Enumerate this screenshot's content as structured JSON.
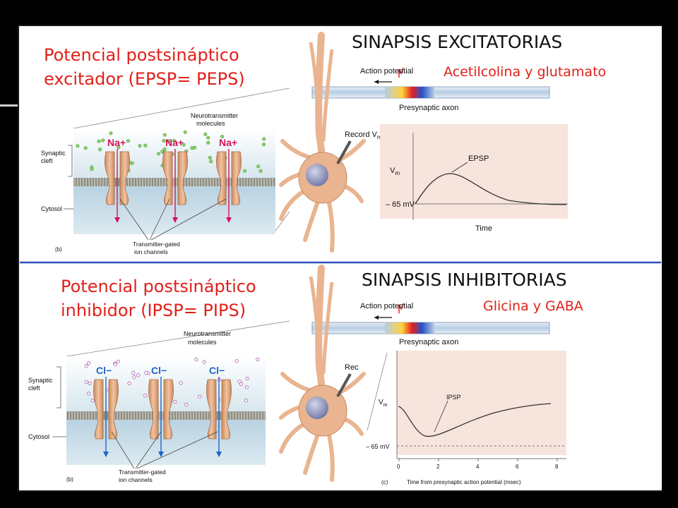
{
  "top": {
    "heading": "SINAPSIS EXCITATORIAS",
    "title_line1": "Potencial postsináptico",
    "title_line2": "excitador (EPSP= PEPS)",
    "transmitters": "Acetilcolina y glutamato",
    "action_potential": "Action potential",
    "presynaptic_axon": "Presynaptic axon",
    "record_vm": "Record V",
    "record_vm_sub": "m",
    "neurotransmitter_line1": "Neurotransmitter",
    "neurotransmitter_line2": "molecules",
    "synaptic_cleft_line1": "Synaptic",
    "synaptic_cleft_line2": "cleft",
    "cytosol": "Cytosol",
    "channels_line1": "Transmitter-gated",
    "channels_line2": "ion channels",
    "panel_letter": "(b)",
    "ion_label": "Na+",
    "graph": {
      "vm_label": "V",
      "vm_sub": "m",
      "baseline_label": "– 65 mV",
      "x_label": "Time",
      "peak_label": "EPSP"
    }
  },
  "bottom": {
    "heading": "SINAPSIS INHIBITORIAS",
    "title_line1": "Potencial postsináptico",
    "title_line2": "inhibidor (IPSP= PIPS)",
    "transmitters": "Glicina y GABA",
    "action_potential": "Action potential",
    "presynaptic_axon": "Presynaptic axon",
    "record_vm": "Rec",
    "neurotransmitter_line1": "Neurotransmitter",
    "neurotransmitter_line2": "molecules",
    "synaptic_cleft_line1": "Synaptic",
    "synaptic_cleft_line2": "cleft",
    "cytosol": "Cytosol",
    "channels_line1": "Transmitter-gated",
    "channels_line2": "ion channels",
    "panel_letter": "(b)",
    "ion_label": "Cl−",
    "graph": {
      "vm_label": "V",
      "vm_sub": "m",
      "baseline_label": "– 65 mV",
      "x_label": "Time from presynaptic action potential (msec)",
      "peak_label": "IPSP",
      "panel_letter": "(c)",
      "x_ticks": [
        "0",
        "2",
        "4",
        "6",
        "8"
      ]
    }
  },
  "colors": {
    "title_red": "#e0201a",
    "divider_blue": "#2f4fb8",
    "na_red": "#d4145a",
    "cl_blue": "#1e64c8",
    "neuron_orange": "#e9b48f",
    "graph_bg": "#f7e4dc"
  }
}
